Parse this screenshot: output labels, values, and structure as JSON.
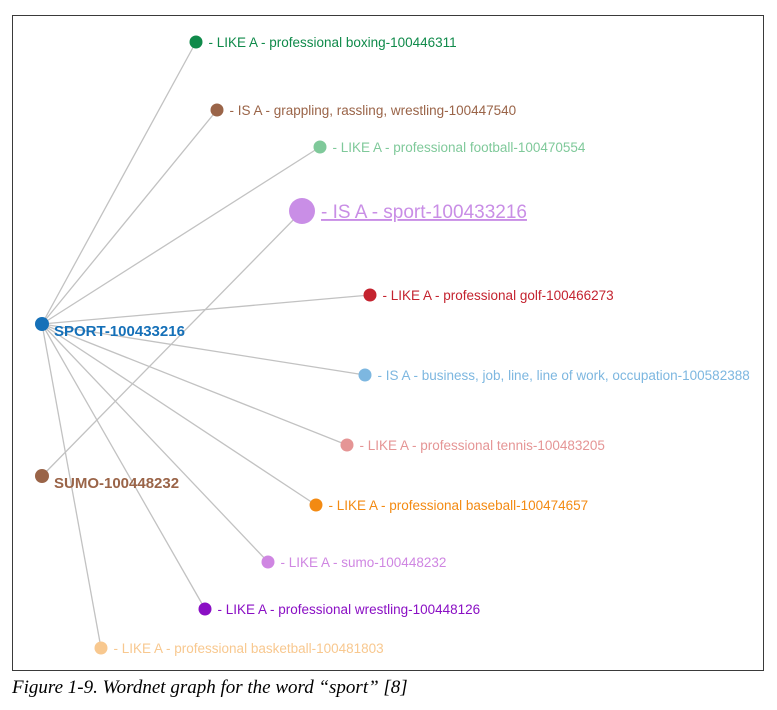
{
  "hubs": [
    {
      "id": "sport",
      "label": "SPORT-100433216",
      "color": "#1570b8"
    },
    {
      "id": "sumo",
      "label": "SUMO-100448232",
      "color": "#9a6448"
    }
  ],
  "nodes": [
    {
      "id": "n1",
      "from": "sport",
      "label": "- LIKE A - professional boxing-100446311",
      "color": "#0f8a4a"
    },
    {
      "id": "n2",
      "from": "sport",
      "label": "- IS A - grappling, rassling, wrestling-100447540",
      "color": "#9a6448"
    },
    {
      "id": "n3",
      "from": "sport",
      "label": "- LIKE A - professional football-100470554",
      "color": "#7fc99a"
    },
    {
      "id": "n4",
      "from": "sumo",
      "label": "- IS A - sport-100433216",
      "color": "#c98ee6",
      "highlight": true
    },
    {
      "id": "n5",
      "from": "sport",
      "label": "- LIKE A - professional golf-100466273",
      "color": "#c4232f"
    },
    {
      "id": "n6",
      "from": "sport",
      "label": "- IS A - business, job, line, line of work, occupation-100582388",
      "color": "#7db7e0"
    },
    {
      "id": "n7",
      "from": "sport",
      "label": "- LIKE A - professional tennis-100483205",
      "color": "#e59595"
    },
    {
      "id": "n8",
      "from": "sport",
      "label": "- LIKE A - professional baseball-100474657",
      "color": "#f38a12"
    },
    {
      "id": "n9",
      "from": "sport",
      "label": "- LIKE A - sumo-100448232",
      "color": "#cf86e2"
    },
    {
      "id": "n10",
      "from": "sport",
      "label": "- LIKE A - professional wrestling-100448126",
      "color": "#8a0fc4"
    },
    {
      "id": "n11",
      "from": "sport",
      "label": "- LIKE A - professional basketball-100481803",
      "color": "#f8c88f"
    }
  ],
  "edge_color": "#c2c2c2",
  "caption": "Figure 1-9. Wordnet graph for the word “sport” [8]"
}
